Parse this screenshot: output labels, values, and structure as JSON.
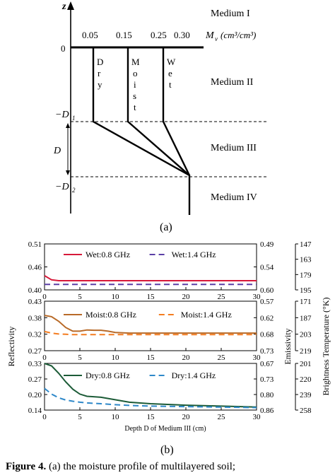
{
  "figure_a": {
    "z_label": "z",
    "origin_label": "0",
    "moisture_ticks": [
      "0.05",
      "0.15",
      "0.25",
      "0.30"
    ],
    "moisture_axis_label": "M",
    "moisture_axis_sub": "v",
    "moisture_axis_units": "(cm³/cm³)",
    "media": [
      "Medium I",
      "Medium II",
      "Medium III",
      "Medium IV"
    ],
    "profiles": [
      {
        "label": [
          "D",
          "r",
          "y"
        ],
        "moisture": 0.05
      },
      {
        "label": [
          "M",
          "o",
          "i",
          "s",
          "t"
        ],
        "moisture": 0.15
      },
      {
        "label": [
          "W",
          "e",
          "t"
        ],
        "moisture": 0.25
      }
    ],
    "depth_labels": {
      "d1": "−D",
      "d1_sub": "1",
      "d": "D",
      "d2": "−D",
      "d2_sub": "2"
    },
    "panel_label": "(a)"
  },
  "figure_b": {
    "panel_label": "(b)",
    "left_axis_label": "Reflectivity",
    "right_axis_label": "Emissivity",
    "far_right_axis_label": "Brightness Temperature (°K)",
    "x_axis_label": "Depth D of Medium III (cm)",
    "x_ticks": [
      "0",
      "5",
      "10",
      "15",
      "20",
      "25",
      "30"
    ]
  },
  "chart_data": [
    {
      "type": "line",
      "name": "wet",
      "x": [
        0,
        1,
        2,
        3,
        5,
        10,
        15,
        20,
        25,
        30
      ],
      "series": [
        {
          "name": "Wet:0.8 GHz",
          "color": "#d7193a",
          "dash": "solid",
          "values": [
            0.434,
            0.424,
            0.422,
            0.422,
            0.422,
            0.422,
            0.422,
            0.422,
            0.422,
            0.422
          ]
        },
        {
          "name": "Wet:1.4 GHz",
          "color": "#5b3fa6",
          "dash": "dashed",
          "values": [
            0.413,
            0.413,
            0.413,
            0.413,
            0.413,
            0.413,
            0.413,
            0.413,
            0.413,
            0.413
          ]
        }
      ],
      "xlim": [
        0,
        30
      ],
      "ylim": [
        0.4,
        0.51
      ],
      "left_ticks": [
        "0.51",
        "0.46",
        "0.40"
      ],
      "right_ticks": [
        "0.49",
        "0.54",
        "0.60"
      ],
      "bt_ticks": [
        "147",
        "163",
        "179",
        "195"
      ],
      "legend": "top-right"
    },
    {
      "type": "line",
      "name": "moist",
      "x": [
        0,
        1,
        2,
        3,
        4,
        5,
        6,
        7,
        8,
        9,
        10,
        12,
        15,
        20,
        25,
        30
      ],
      "series": [
        {
          "name": "Moist:0.8 GHz",
          "color": "#b86a28",
          "dash": "solid",
          "values": [
            0.384,
            0.38,
            0.365,
            0.345,
            0.333,
            0.333,
            0.337,
            0.336,
            0.336,
            0.333,
            0.329,
            0.327,
            0.327,
            0.327,
            0.327,
            0.327
          ]
        },
        {
          "name": "Moist:1.4 GHz",
          "color": "#f47c20",
          "dash": "dashed",
          "values": [
            0.332,
            0.327,
            0.324,
            0.323,
            0.322,
            0.322,
            0.322,
            0.322,
            0.322,
            0.322,
            0.322,
            0.322,
            0.322,
            0.322,
            0.322,
            0.322
          ]
        }
      ],
      "xlim": [
        0,
        30
      ],
      "ylim": [
        0.27,
        0.43
      ],
      "left_ticks": [
        "0.43",
        "0.38",
        "0.32",
        "0.27"
      ],
      "right_ticks": [
        "0.57",
        "0.62",
        "0.68",
        "0.73"
      ],
      "bt_ticks": [
        "171",
        "187",
        "203",
        "219"
      ],
      "legend": "top-right"
    },
    {
      "type": "line",
      "name": "dry",
      "x": [
        0,
        1,
        2,
        3,
        4,
        5,
        6,
        8,
        10,
        12,
        15,
        20,
        25,
        30
      ],
      "series": [
        {
          "name": "Dry:0.8 GHz",
          "color": "#1c5b37",
          "dash": "solid",
          "values": [
            0.33,
            0.32,
            0.29,
            0.255,
            0.225,
            0.205,
            0.196,
            0.192,
            0.182,
            0.172,
            0.166,
            0.16,
            0.156,
            0.152
          ]
        },
        {
          "name": "Dry:1.4 GHz",
          "color": "#2e88c9",
          "dash": "dashed",
          "values": [
            0.228,
            0.205,
            0.19,
            0.181,
            0.176,
            0.172,
            0.169,
            0.166,
            0.162,
            0.159,
            0.156,
            0.154,
            0.152,
            0.15
          ]
        }
      ],
      "xlim": [
        0,
        30
      ],
      "ylim": [
        0.14,
        0.33
      ],
      "left_ticks": [
        "0.33",
        "0.27",
        "0.20",
        "0.14"
      ],
      "right_ticks": [
        "0.67",
        "0.73",
        "0.80",
        "0.86"
      ],
      "bt_ticks": [
        "201",
        "220",
        "239",
        "258"
      ],
      "legend": "top-right"
    }
  ],
  "caption": {
    "prefix": "Figure 4.",
    "text": " (a) the moisture profile of multilayered soil;"
  }
}
